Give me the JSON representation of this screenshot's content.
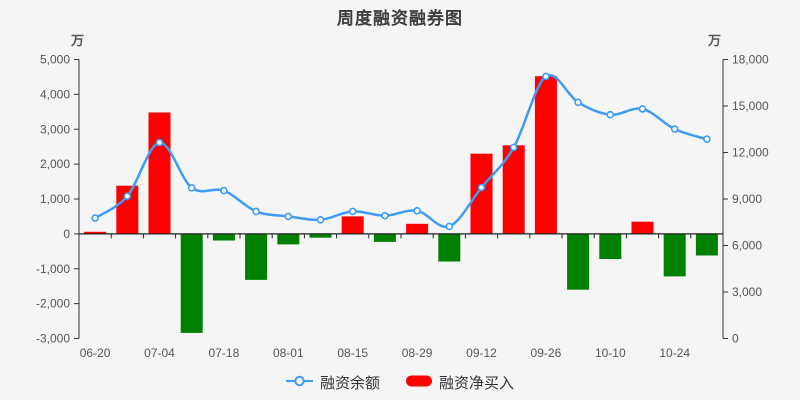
{
  "title": "周度融资融券图",
  "axes": {
    "left": {
      "unit": "万",
      "ticks": [
        "5,000",
        "4,000",
        "3,000",
        "2,000",
        "1,000",
        "0",
        "-1,000",
        "-2,000",
        "-3,000"
      ]
    },
    "right": {
      "unit": "万",
      "ticks": [
        "18,000",
        "15,000",
        "12,000",
        "9,000",
        "6,000",
        "3,000",
        "0"
      ]
    }
  },
  "legend": {
    "items": [
      {
        "label": "融资余额",
        "type": "line",
        "color": "#3e9cf5"
      },
      {
        "label": "融资净买入",
        "type": "bar",
        "color": "#ff0000"
      }
    ]
  },
  "colors": {
    "background": "#f5f5f5",
    "line": "#3e9cf5",
    "marker_fill": "#ffffff",
    "bar_positive": "#ff0000",
    "bar_negative": "#008000",
    "axis": "#333333",
    "text": "#555555",
    "title_text": "#3c3c3c"
  },
  "chart_data": {
    "type": "combo",
    "x_tick_labels": [
      "06-20",
      "07-04",
      "07-18",
      "08-01",
      "08-15",
      "08-29",
      "09-12",
      "09-26",
      "10-10",
      "10-24"
    ],
    "points_per_tick": 2,
    "n_points": 20,
    "left_ylim": [
      -3000,
      5000
    ],
    "right_ylim": [
      0,
      18000
    ],
    "grid": false,
    "legend_position": "bottom",
    "series": [
      {
        "name": "融资余额",
        "type": "line",
        "y_axis": "right",
        "smooth": true,
        "values": [
          7770,
          9180,
          12640,
          9720,
          9540,
          8200,
          7880,
          7660,
          8200,
          7920,
          8240,
          7230,
          9740,
          12320,
          16910,
          15240,
          14440,
          14810,
          13510,
          12860
        ]
      },
      {
        "name": "融资净买入",
        "type": "bar",
        "y_axis": "left",
        "values": [
          60,
          1380,
          3480,
          -2840,
          -190,
          -1320,
          -300,
          -110,
          500,
          -230,
          290,
          -790,
          2300,
          2540,
          4520,
          -1600,
          -720,
          350,
          -1220,
          -620
        ]
      }
    ]
  }
}
